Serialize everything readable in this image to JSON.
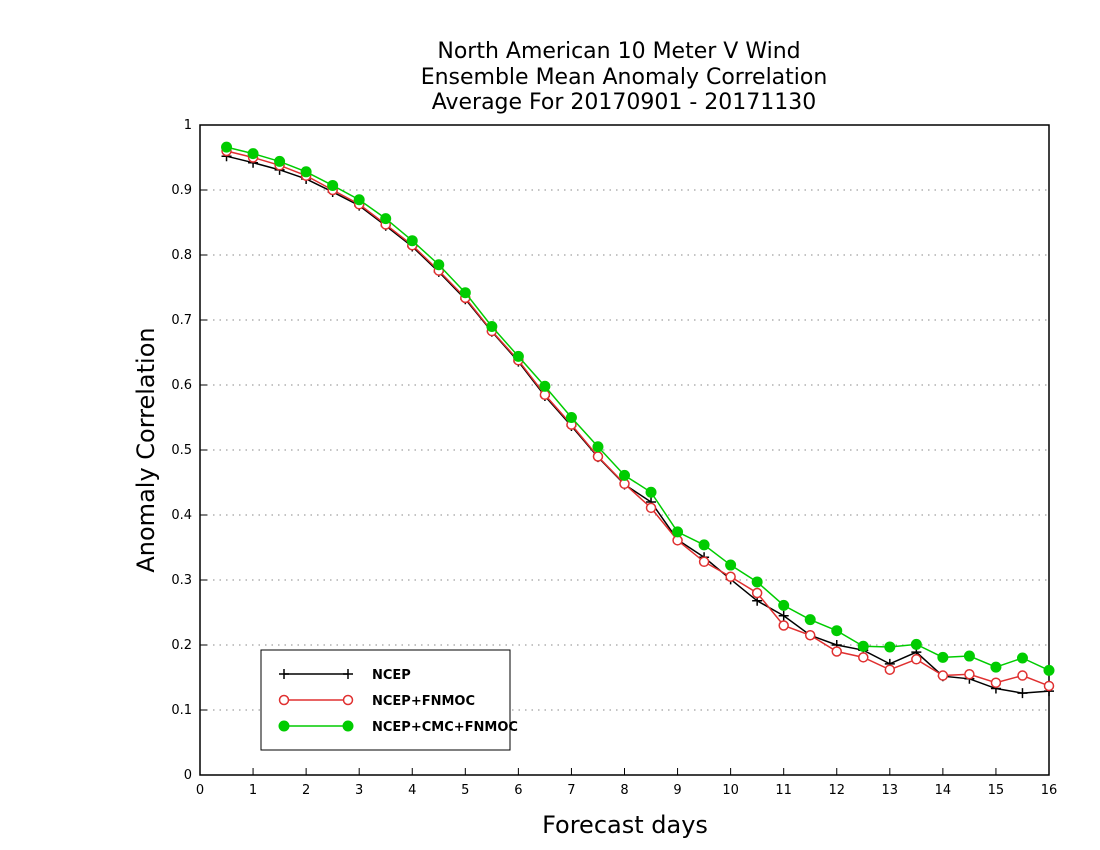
{
  "chart_data": {
    "type": "line",
    "title": [
      "North American 10 Meter V Wind",
      "Ensemble Mean Anomaly Correlation",
      "Average For 20170901 - 20171130"
    ],
    "xlabel": "Forecast days",
    "ylabel": "Anomaly Correlation",
    "xlim": [
      0,
      16
    ],
    "ylim": [
      0,
      1
    ],
    "xticks": [
      "0",
      "1",
      "2",
      "3",
      "4",
      "5",
      "6",
      "7",
      "8",
      "9",
      "10",
      "11",
      "12",
      "13",
      "14",
      "15",
      "16"
    ],
    "yticks": [
      "0",
      "0.1",
      "0.2",
      "0.3",
      "0.4",
      "0.5",
      "0.6",
      "0.7",
      "0.8",
      "0.9",
      "1"
    ],
    "grid": "horizontal dotted",
    "legend_position": "bottom-left",
    "x": [
      0.5,
      1,
      1.5,
      2,
      2.5,
      3,
      3.5,
      4,
      4.5,
      5,
      5.5,
      6,
      6.5,
      7,
      7.5,
      8,
      8.5,
      9,
      9.5,
      10,
      10.5,
      11,
      11.5,
      12,
      12.5,
      13,
      13.5,
      14,
      14.5,
      15,
      15.5,
      16
    ],
    "series": [
      {
        "name": "NCEP",
        "color": "#000000",
        "marker": "plus",
        "values": [
          0.952,
          0.942,
          0.931,
          0.917,
          0.897,
          0.876,
          0.845,
          0.813,
          0.774,
          0.732,
          0.682,
          0.636,
          0.583,
          0.537,
          0.489,
          0.447,
          0.42,
          0.362,
          0.335,
          0.301,
          0.268,
          0.245,
          0.215,
          0.2,
          0.192,
          0.171,
          0.189,
          0.152,
          0.148,
          0.133,
          0.126,
          0.129
        ]
      },
      {
        "name": "NCEP+FNMOC",
        "color": "#e03030",
        "marker": "open-circle",
        "values": [
          0.96,
          0.95,
          0.938,
          0.922,
          0.9,
          0.878,
          0.847,
          0.815,
          0.776,
          0.734,
          0.683,
          0.638,
          0.585,
          0.539,
          0.49,
          0.448,
          0.411,
          0.361,
          0.328,
          0.305,
          0.28,
          0.23,
          0.215,
          0.19,
          0.181,
          0.162,
          0.178,
          0.153,
          0.155,
          0.142,
          0.153,
          0.137
        ]
      },
      {
        "name": "NCEP+CMC+FNMOC",
        "color": "#00cc00",
        "marker": "filled-circle",
        "values": [
          0.966,
          0.956,
          0.944,
          0.928,
          0.907,
          0.885,
          0.856,
          0.822,
          0.785,
          0.742,
          0.69,
          0.644,
          0.598,
          0.55,
          0.505,
          0.461,
          0.435,
          0.374,
          0.354,
          0.323,
          0.297,
          0.261,
          0.239,
          0.222,
          0.198,
          0.197,
          0.201,
          0.181,
          0.183,
          0.166,
          0.18,
          0.161
        ]
      }
    ]
  }
}
